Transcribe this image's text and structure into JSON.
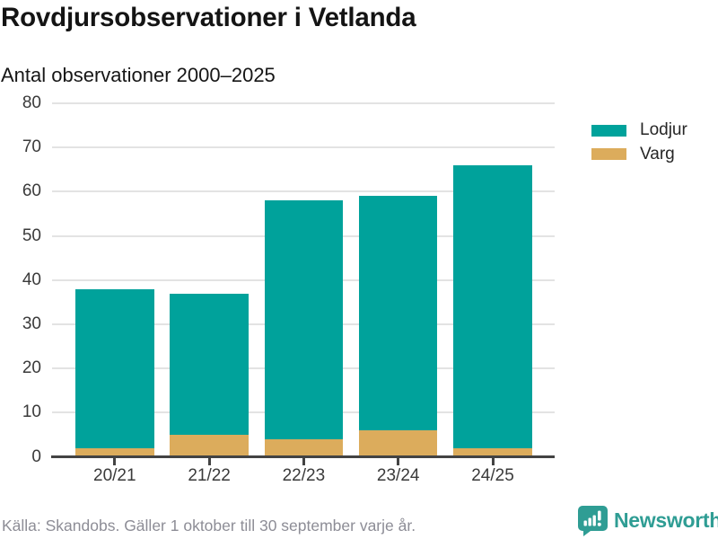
{
  "title": "Rovdjursobservationer i Vetlanda",
  "subtitle": "Antal observationer 2000–2025",
  "legend": {
    "items": [
      {
        "label": "Lodjur",
        "color": "#00a29b"
      },
      {
        "label": "Varg",
        "color": "#dcac5c"
      }
    ]
  },
  "footer": {
    "source_note": "Källa: Skandobs. Gäller 1 oktober till 30 september varje år."
  },
  "branding": {
    "logo_text": "Newsworthy",
    "logo_icon": "bar-chart-speech-bubble-icon",
    "brand_color": "#2f9d94"
  },
  "chart_data": {
    "type": "bar",
    "stacked": true,
    "categories": [
      "20/21",
      "21/22",
      "22/23",
      "23/24",
      "24/25"
    ],
    "series": [
      {
        "name": "Lodjur",
        "color": "#00a29b",
        "values": [
          36,
          32,
          54,
          53,
          64
        ]
      },
      {
        "name": "Varg",
        "color": "#dcac5c",
        "values": [
          2,
          5,
          4,
          6,
          2
        ]
      }
    ],
    "stack_order_bottom_to_top": [
      "Varg",
      "Lodjur"
    ],
    "totals": [
      38,
      37,
      58,
      59,
      66
    ],
    "title": "Rovdjursobservationer i Vetlanda",
    "subtitle": "Antal observationer 2000–2025",
    "xlabel": "",
    "ylabel": "",
    "ylim": [
      0,
      80
    ],
    "yticks": [
      0,
      10,
      20,
      30,
      40,
      50,
      60,
      70,
      80
    ],
    "grid": true,
    "gridline_color": "#e3e3e3",
    "axis_line_color": "#434343",
    "axis_text_color": "#3a3a3a",
    "legend_position": "right"
  }
}
